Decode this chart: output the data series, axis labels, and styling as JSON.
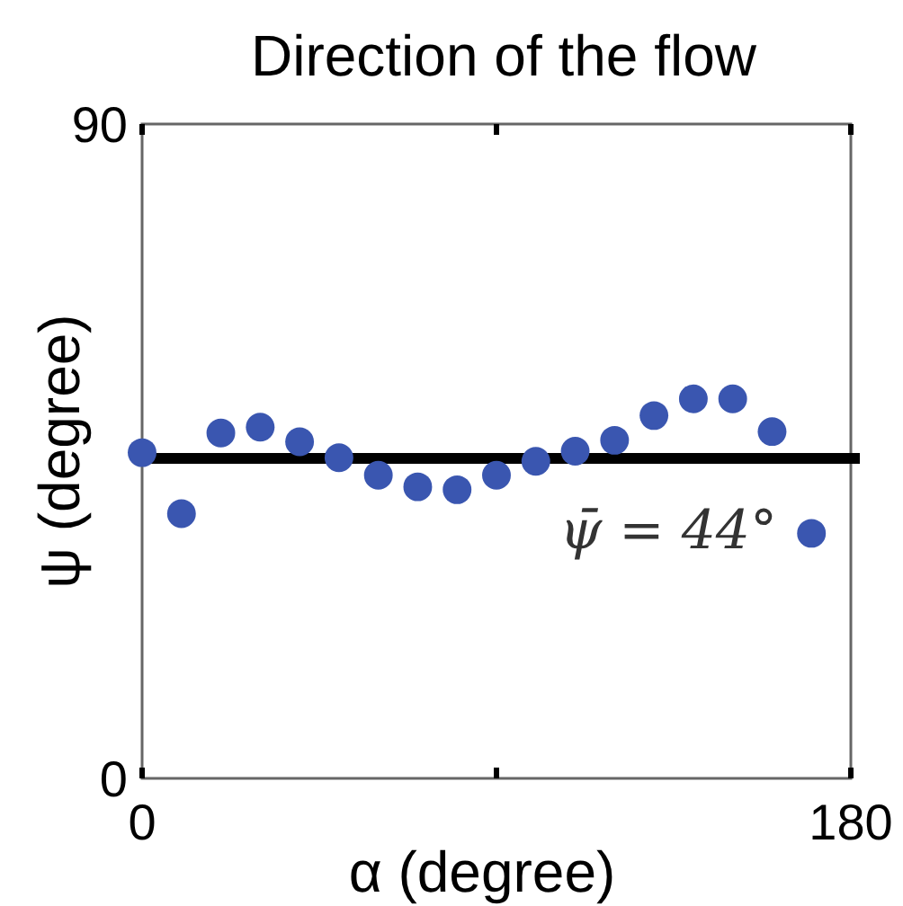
{
  "chart_data": {
    "type": "scatter",
    "title": "Direction of the flow",
    "xlabel": "α  (degree)",
    "ylabel": "ψ  (degree)",
    "x": [
      0,
      10,
      20,
      30,
      40,
      50,
      60,
      70,
      80,
      90,
      100,
      110,
      120,
      130,
      140,
      150,
      160,
      170
    ],
    "series": [
      {
        "color": "#3a56b0",
        "values": [
          44.8,
          36.4,
          47.5,
          48.3,
          46.3,
          44.1,
          41.7,
          40.1,
          39.7,
          41.7,
          43.6,
          45.0,
          46.5,
          49.9,
          52.2,
          52.2,
          47.7,
          33.7
        ]
      }
    ],
    "xlim": [
      0,
      180
    ],
    "ylim": [
      0,
      90
    ],
    "xticks": [
      0,
      {
        "value": 90,
        "label": null
      },
      180
    ],
    "yticks": [
      0,
      90
    ],
    "ref_lines": [
      {
        "axis": "y",
        "value": 44,
        "label": "ψ̄ = 44°",
        "color": "#000000"
      }
    ],
    "marker": "circle",
    "grid": false
  }
}
